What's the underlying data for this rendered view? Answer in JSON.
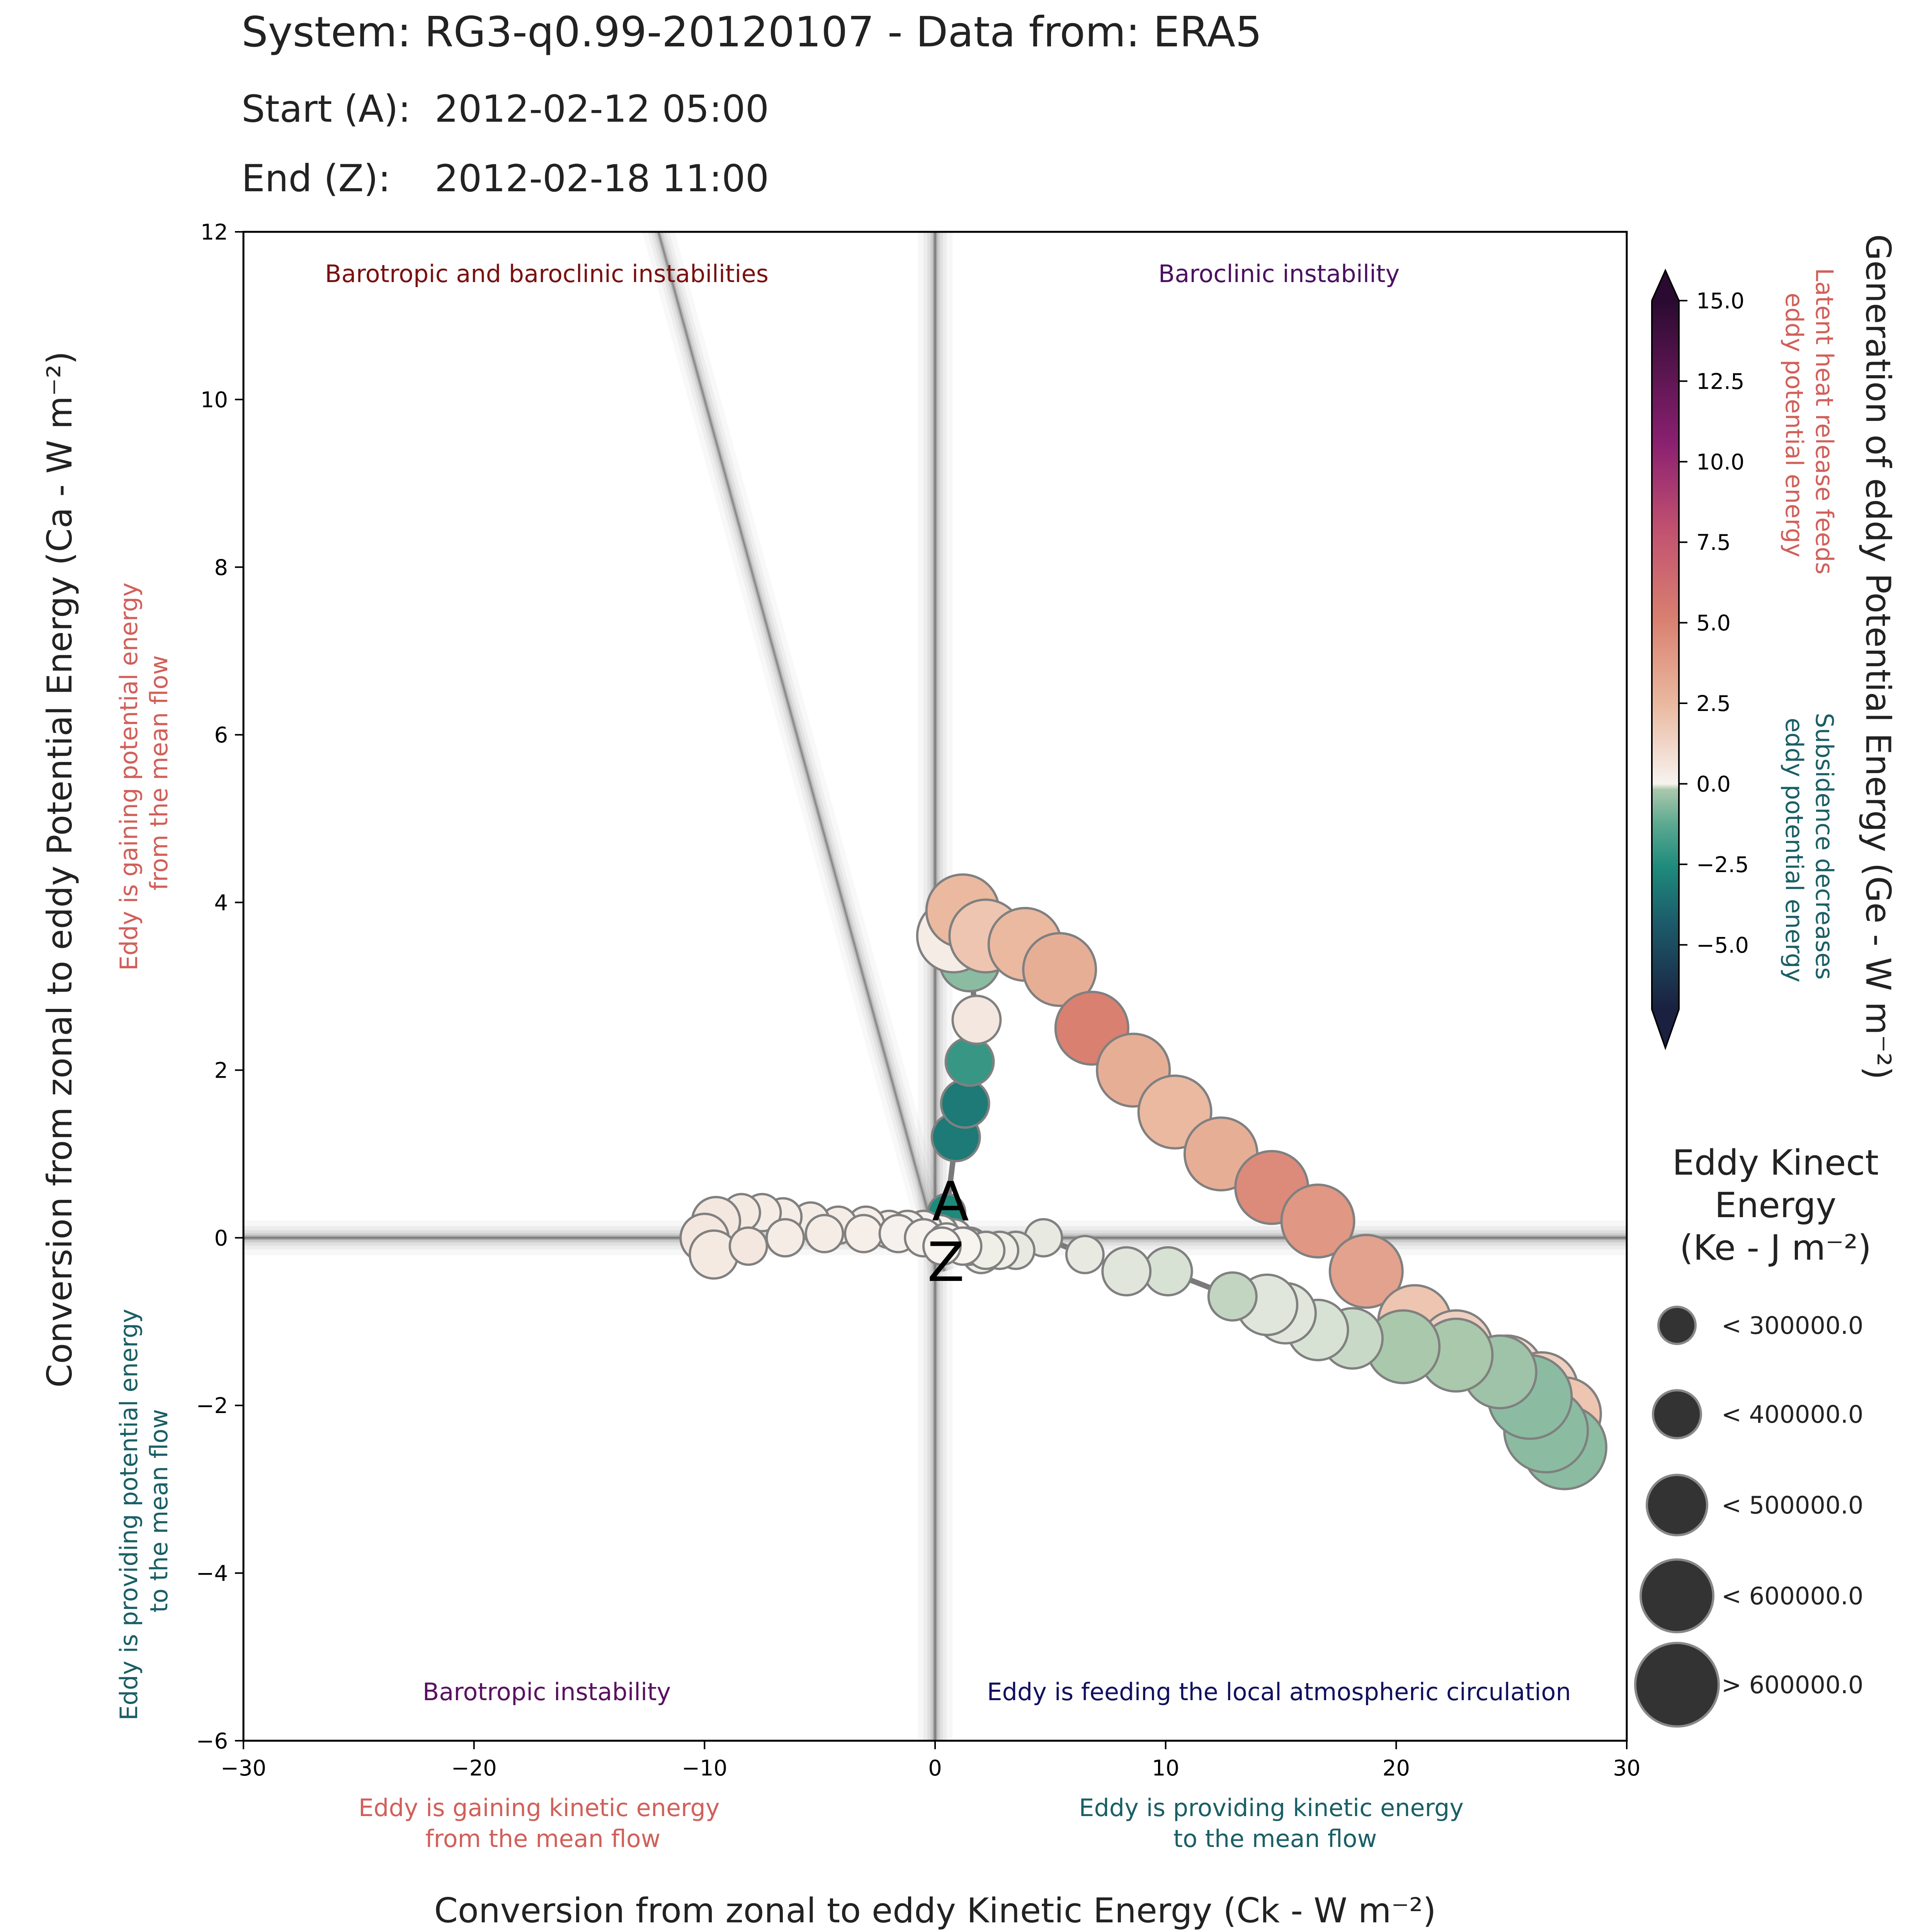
{
  "header": {
    "title": "System: RG3-q0.99-20120107 - Data from: ERA5",
    "start_label": "Start (A):",
    "start_value": "2012-02-12 05:00",
    "end_label": "End (Z):",
    "end_value": "2012-02-18 11:00"
  },
  "quadrants": {
    "top_left": "Barotropic and baroclinic instabilities",
    "top_right": "Baroclinic instability",
    "bottom_left": "Barotropic instability",
    "bottom_right": "Eddy is feeding the local atmospheric circulation"
  },
  "annotations": {
    "x_negative": [
      "Eddy is gaining kinetic energy",
      "from the mean flow"
    ],
    "x_positive": [
      "Eddy is providing kinetic energy",
      "to the mean flow"
    ],
    "y_positive": [
      "Eddy is gaining potential energy",
      "from the mean flow"
    ],
    "y_negative": [
      "Eddy is providing potential energy",
      "to the mean flow"
    ],
    "cbar_positive": [
      "Latent heat release feeds",
      "eddy potential energy"
    ],
    "cbar_negative": [
      "Subsidence decreases",
      "eddy potential energy"
    ]
  },
  "colors": {
    "positive_note": "#d1605a",
    "negative_note": "#1a5f66",
    "quad_top_left": "#7a1010",
    "quad_top_right": "#4b1060",
    "quad_bottom_left": "#5a1060",
    "quad_bottom_right": "#101060"
  },
  "chart_data": {
    "type": "scatter",
    "xlabel": "Conversion from zonal to eddy Kinetic Energy (Ck -  W m⁻²)",
    "ylabel": "Conversion from zonal to eddy Potential Energy (Ca -  W m⁻²)",
    "xlim": [
      -30,
      30
    ],
    "ylim": [
      -6,
      12
    ],
    "xticks": [
      -30,
      -20,
      -10,
      0,
      10,
      20,
      30
    ],
    "yticks": [
      -6,
      -4,
      -2,
      0,
      2,
      4,
      6,
      8,
      10,
      12
    ],
    "colorbar": {
      "label": "Generation of eddy Potential Energy (Ge -  W m⁻²)",
      "range": [
        -7.0,
        15.0
      ],
      "ticks": [
        -5.0,
        -2.5,
        0.0,
        2.5,
        5.0,
        7.5,
        10.0,
        12.5,
        15.0
      ],
      "tick_labels": [
        "−5.0",
        "−2.5",
        "0.0",
        "2.5",
        "5.0",
        "7.5",
        "10.0",
        "12.5",
        "15.0"
      ]
    },
    "size_legend": {
      "title": [
        "Eddy Kinect",
        "Energy",
        "(Ke -  J m⁻²)"
      ],
      "entries": [
        "< 300000.0",
        "< 400000.0",
        "< 500000.0",
        "< 600000.0",
        "> 600000.0"
      ]
    },
    "start_marker": "A",
    "end_marker": "Z",
    "points": [
      {
        "ck": 0.5,
        "ca": 0.3,
        "ge": -3.5,
        "ke": 250000
      },
      {
        "ck": 0.9,
        "ca": 1.2,
        "ge": -4.0,
        "ke": 300000
      },
      {
        "ck": 1.3,
        "ca": 1.6,
        "ge": -4.0,
        "ke": 320000
      },
      {
        "ck": 1.5,
        "ca": 2.1,
        "ge": -3.0,
        "ke": 350000
      },
      {
        "ck": 1.8,
        "ca": 2.6,
        "ge": 0.5,
        "ke": 380000
      },
      {
        "ck": 1.5,
        "ca": 3.3,
        "ge": -1.5,
        "ke": 420000
      },
      {
        "ck": 0.8,
        "ca": 3.6,
        "ge": 0.3,
        "ke": 520000
      },
      {
        "ck": 1.2,
        "ca": 3.9,
        "ge": 2.5,
        "ke": 560000
      },
      {
        "ck": 2.2,
        "ca": 3.6,
        "ge": 2.0,
        "ke": 540000
      },
      {
        "ck": 3.9,
        "ca": 3.5,
        "ge": 2.5,
        "ke": 560000
      },
      {
        "ck": 5.4,
        "ca": 3.2,
        "ge": 3.0,
        "ke": 560000
      },
      {
        "ck": 6.8,
        "ca": 2.5,
        "ge": 5.0,
        "ke": 540000
      },
      {
        "ck": 8.6,
        "ca": 2.0,
        "ge": 3.0,
        "ke": 560000
      },
      {
        "ck": 10.4,
        "ca": 1.5,
        "ge": 2.5,
        "ke": 580000
      },
      {
        "ck": 12.4,
        "ca": 1.0,
        "ge": 3.0,
        "ke": 580000
      },
      {
        "ck": 14.6,
        "ca": 0.6,
        "ge": 4.5,
        "ke": 560000
      },
      {
        "ck": 16.6,
        "ca": 0.2,
        "ge": 4.0,
        "ke": 580000
      },
      {
        "ck": 18.7,
        "ca": -0.4,
        "ge": 3.5,
        "ke": 580000
      },
      {
        "ck": 20.8,
        "ca": -1.0,
        "ge": 2.0,
        "ke": 540000
      },
      {
        "ck": 22.6,
        "ca": -1.3,
        "ge": 1.5,
        "ke": 560000
      },
      {
        "ck": 24.8,
        "ca": -1.6,
        "ge": 1.0,
        "ke": 580000
      },
      {
        "ck": 26.3,
        "ca": -1.8,
        "ge": 1.5,
        "ke": 580000
      },
      {
        "ck": 27.3,
        "ca": -2.1,
        "ge": 2.0,
        "ke": 580000
      },
      {
        "ck": 27.3,
        "ca": -2.5,
        "ge": -1.5,
        "ke": 620000
      },
      {
        "ck": 26.5,
        "ca": -2.3,
        "ge": -1.5,
        "ke": 620000
      },
      {
        "ck": 25.8,
        "ca": -1.9,
        "ge": -1.5,
        "ke": 600000
      },
      {
        "ck": 24.5,
        "ca": -1.6,
        "ge": -1.2,
        "ke": 580000
      },
      {
        "ck": 22.6,
        "ca": -1.4,
        "ge": -1.0,
        "ke": 560000
      },
      {
        "ck": 20.3,
        "ca": -1.3,
        "ge": -1.0,
        "ke": 530000
      },
      {
        "ck": 18.1,
        "ca": -1.2,
        "ge": -0.6,
        "ke": 470000
      },
      {
        "ck": 16.6,
        "ca": -1.1,
        "ge": -0.4,
        "ke": 440000
      },
      {
        "ck": 15.2,
        "ca": -0.9,
        "ge": -0.3,
        "ke": 420000
      },
      {
        "ck": 14.4,
        "ca": -0.8,
        "ge": -0.3,
        "ke": 400000
      },
      {
        "ck": 12.9,
        "ca": -0.7,
        "ge": -0.7,
        "ke": 320000
      },
      {
        "ck": 10.1,
        "ca": -0.4,
        "ge": -0.4,
        "ke": 300000
      },
      {
        "ck": 8.3,
        "ca": -0.4,
        "ge": -0.3,
        "ke": 300000
      },
      {
        "ck": 6.5,
        "ca": -0.2,
        "ge": -0.2,
        "ke": 280000
      },
      {
        "ck": 4.7,
        "ca": 0.0,
        "ge": -0.2,
        "ke": 260000
      },
      {
        "ck": 3.5,
        "ca": -0.15,
        "ge": -0.2,
        "ke": 240000
      },
      {
        "ck": 2.8,
        "ca": -0.15,
        "ge": -0.1,
        "ke": 240000
      },
      {
        "ck": 2.0,
        "ca": -0.2,
        "ge": -0.1,
        "ke": 240000
      },
      {
        "ck": 1.5,
        "ca": -0.1,
        "ge": 0.0,
        "ke": 240000
      },
      {
        "ck": 0.8,
        "ca": 0.0,
        "ge": 0.1,
        "ke": 240000
      },
      {
        "ck": 0.2,
        "ca": 0.05,
        "ge": 0.1,
        "ke": 240000
      },
      {
        "ck": -0.5,
        "ca": 0.1,
        "ge": 0.1,
        "ke": 240000
      },
      {
        "ck": -1.2,
        "ca": 0.1,
        "ge": 0.1,
        "ke": 240000
      },
      {
        "ck": -2.0,
        "ca": 0.1,
        "ge": 0.2,
        "ke": 250000
      },
      {
        "ck": -3.0,
        "ca": 0.15,
        "ge": 0.2,
        "ke": 260000
      },
      {
        "ck": -4.2,
        "ca": 0.15,
        "ge": 0.3,
        "ke": 260000
      },
      {
        "ck": -5.4,
        "ca": 0.2,
        "ge": 0.3,
        "ke": 270000
      },
      {
        "ck": -6.6,
        "ca": 0.25,
        "ge": 0.3,
        "ke": 280000
      },
      {
        "ck": -7.5,
        "ca": 0.3,
        "ge": 0.3,
        "ke": 290000
      },
      {
        "ck": -8.4,
        "ca": 0.3,
        "ge": 0.4,
        "ke": 290000
      },
      {
        "ck": -9.5,
        "ca": 0.2,
        "ge": 0.5,
        "ke": 300000
      },
      {
        "ck": -10.0,
        "ca": 0.0,
        "ge": 0.5,
        "ke": 300000
      },
      {
        "ck": -9.6,
        "ca": -0.2,
        "ge": 0.4,
        "ke": 300000
      },
      {
        "ck": -8.1,
        "ca": -0.1,
        "ge": 0.5,
        "ke": 290000
      },
      {
        "ck": -6.5,
        "ca": 0.0,
        "ge": 0.3,
        "ke": 270000
      },
      {
        "ck": -4.8,
        "ca": 0.05,
        "ge": 0.3,
        "ke": 250000
      },
      {
        "ck": -3.1,
        "ca": 0.05,
        "ge": 0.2,
        "ke": 240000
      },
      {
        "ck": -1.6,
        "ca": 0.05,
        "ge": 0.1,
        "ke": 240000
      },
      {
        "ck": -0.5,
        "ca": 0.0,
        "ge": 0.1,
        "ke": 240000
      },
      {
        "ck": 0.5,
        "ca": -0.05,
        "ge": 0.0,
        "ke": 240000
      },
      {
        "ck": 1.4,
        "ca": -0.1,
        "ge": 0.0,
        "ke": 240000
      },
      {
        "ck": 2.2,
        "ca": -0.15,
        "ge": -0.1,
        "ke": 240000
      },
      {
        "ck": 1.2,
        "ca": -0.1,
        "ge": 0.0,
        "ke": 240000
      },
      {
        "ck": 0.3,
        "ca": -0.1,
        "ge": 0.0,
        "ke": 240000
      }
    ]
  }
}
